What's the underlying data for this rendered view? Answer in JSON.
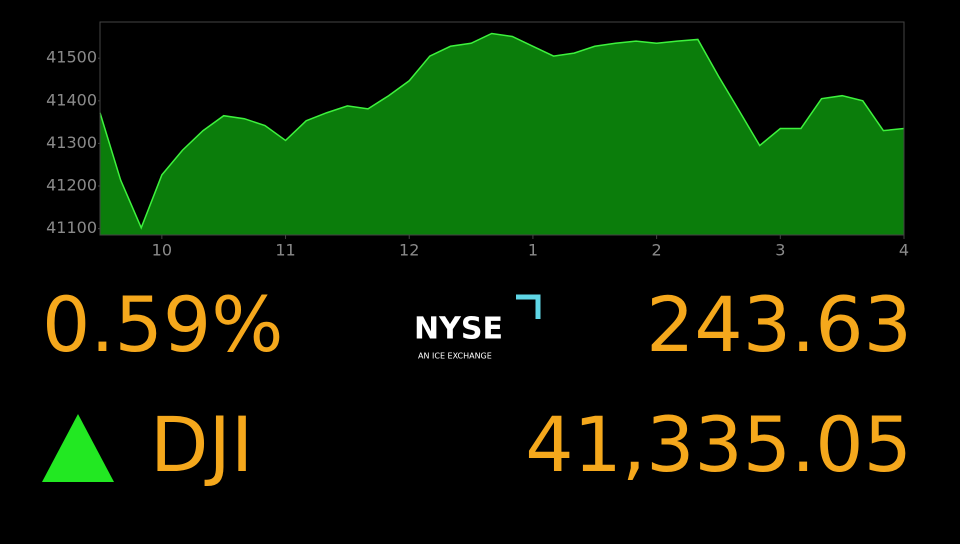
{
  "chart_data": {
    "type": "area",
    "color": "#0b7d0b",
    "line_color": "#3df23d",
    "x": [
      570,
      580,
      590,
      600,
      610,
      620,
      630,
      640,
      650,
      660,
      670,
      680,
      690,
      700,
      710,
      720,
      730,
      740,
      750,
      760,
      770,
      780,
      790,
      800,
      810,
      820,
      830,
      840,
      850,
      860,
      870,
      880,
      890,
      900,
      910,
      920,
      930,
      940,
      950,
      960
    ],
    "values": [
      41372,
      41214,
      41102,
      41226,
      41284,
      41330,
      41365,
      41358,
      41342,
      41307,
      41353,
      41372,
      41388,
      41381,
      41412,
      41447,
      41505,
      41528,
      41535,
      41558,
      41551,
      41528,
      41505,
      41512,
      41528,
      41535,
      41540,
      41535,
      41540,
      41544,
      41458,
      41377,
      41295,
      41335,
      41335,
      41405,
      41412,
      41400,
      41330,
      41335
    ],
    "xlim": [
      570,
      960
    ],
    "xticks": [
      {
        "value": 600,
        "label": "10"
      },
      {
        "value": 660,
        "label": "11"
      },
      {
        "value": 720,
        "label": "12"
      },
      {
        "value": 780,
        "label": "1"
      },
      {
        "value": 840,
        "label": "2"
      },
      {
        "value": 900,
        "label": "3"
      },
      {
        "value": 960,
        "label": "4"
      }
    ],
    "ylim": [
      41085,
      41585
    ],
    "yticks": [
      41100,
      41200,
      41300,
      41400,
      41500
    ],
    "grid": false
  },
  "ticker": {
    "percent_change": "0.59%",
    "point_change": "243.63",
    "symbol": "DJI",
    "price": "41,335.05",
    "logo": "NYSE",
    "logo_tagline": "AN ICE EXCHANGE"
  }
}
